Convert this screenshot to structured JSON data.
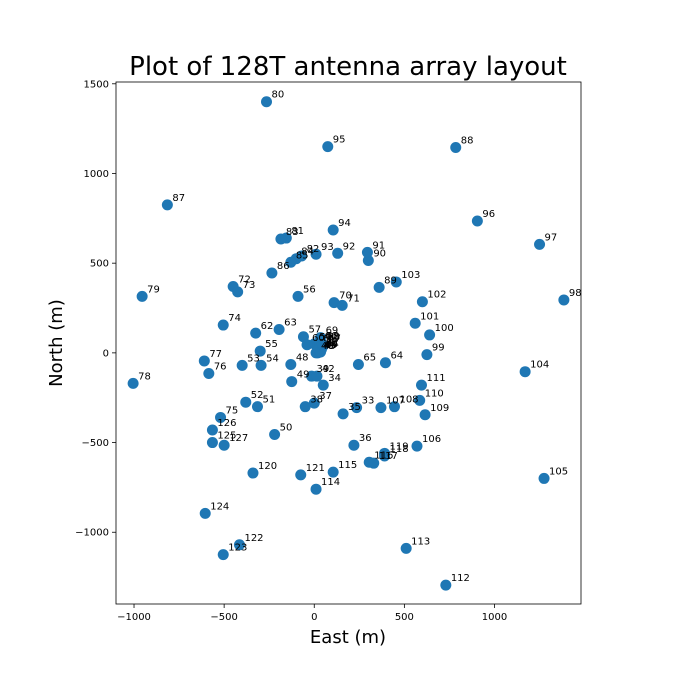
{
  "chart_data": {
    "type": "scatter",
    "title": "Plot of 128T antenna array layout",
    "xlabel": "East (m)",
    "ylabel": "North (m)",
    "xlim": [
      -1100,
      1480
    ],
    "ylim": [
      -1400,
      1510
    ],
    "xticks": [
      -1000,
      -500,
      0,
      500,
      1000
    ],
    "yticks": [
      -1000,
      -500,
      0,
      500,
      1000,
      1500
    ],
    "grid": false,
    "color": "#1f77b4",
    "points": [
      {
        "label": "33",
        "x": 235,
        "y": -305
      },
      {
        "label": "34",
        "x": 50,
        "y": -180
      },
      {
        "label": "35",
        "x": 160,
        "y": -340
      },
      {
        "label": "36",
        "x": 220,
        "y": -515
      },
      {
        "label": "37",
        "x": 0,
        "y": -280
      },
      {
        "label": "38",
        "x": -50,
        "y": -300
      },
      {
        "label": "39",
        "x": -15,
        "y": -130
      },
      {
        "label": "40",
        "x": 10,
        "y": 0
      },
      {
        "label": "41",
        "x": 40,
        "y": 20
      },
      {
        "label": "42",
        "x": 15,
        "y": -130
      },
      {
        "label": "43",
        "x": 20,
        "y": 0
      },
      {
        "label": "44",
        "x": 25,
        "y": 5
      },
      {
        "label": "45",
        "x": 30,
        "y": 5
      },
      {
        "label": "46",
        "x": 35,
        "y": 10
      },
      {
        "label": "47",
        "x": 35,
        "y": 5
      },
      {
        "label": "48",
        "x": -130,
        "y": -65
      },
      {
        "label": "49",
        "x": -125,
        "y": -160
      },
      {
        "label": "50",
        "x": -220,
        "y": -455
      },
      {
        "label": "51",
        "x": -315,
        "y": -300
      },
      {
        "label": "52",
        "x": -380,
        "y": -275
      },
      {
        "label": "53",
        "x": -400,
        "y": -70
      },
      {
        "label": "54",
        "x": -295,
        "y": -70
      },
      {
        "label": "55",
        "x": -300,
        "y": 10
      },
      {
        "label": "56",
        "x": -90,
        "y": 315
      },
      {
        "label": "57",
        "x": -60,
        "y": 90
      },
      {
        "label": "58",
        "x": 40,
        "y": 55
      },
      {
        "label": "59",
        "x": 0,
        "y": 50
      },
      {
        "label": "60",
        "x": -40,
        "y": 45
      },
      {
        "label": "61",
        "x": 20,
        "y": 40
      },
      {
        "label": "62",
        "x": -325,
        "y": 110
      },
      {
        "label": "63",
        "x": -195,
        "y": 130
      },
      {
        "label": "64",
        "x": 395,
        "y": -55
      },
      {
        "label": "65",
        "x": 245,
        "y": -65
      },
      {
        "label": "66",
        "x": 30,
        "y": 55
      },
      {
        "label": "67",
        "x": 50,
        "y": 40
      },
      {
        "label": "68",
        "x": 45,
        "y": 50
      },
      {
        "label": "69",
        "x": 35,
        "y": 85
      },
      {
        "label": "70",
        "x": 110,
        "y": 280
      },
      {
        "label": "71",
        "x": 155,
        "y": 265
      },
      {
        "label": "72",
        "x": -450,
        "y": 370
      },
      {
        "label": "73",
        "x": -425,
        "y": 340
      },
      {
        "label": "74",
        "x": -505,
        "y": 155
      },
      {
        "label": "75",
        "x": -520,
        "y": -360
      },
      {
        "label": "76",
        "x": -585,
        "y": -115
      },
      {
        "label": "77",
        "x": -610,
        "y": -45
      },
      {
        "label": "78",
        "x": -1005,
        "y": -170
      },
      {
        "label": "79",
        "x": -955,
        "y": 315
      },
      {
        "label": "80",
        "x": -265,
        "y": 1400
      },
      {
        "label": "81",
        "x": -155,
        "y": 640
      },
      {
        "label": "82",
        "x": -70,
        "y": 540
      },
      {
        "label": "83",
        "x": -185,
        "y": 635
      },
      {
        "label": "84",
        "x": -100,
        "y": 525
      },
      {
        "label": "85",
        "x": -130,
        "y": 505
      },
      {
        "label": "86",
        "x": -235,
        "y": 445
      },
      {
        "label": "87",
        "x": -815,
        "y": 825
      },
      {
        "label": "88",
        "x": 785,
        "y": 1145
      },
      {
        "label": "89",
        "x": 360,
        "y": 365
      },
      {
        "label": "90",
        "x": 300,
        "y": 515
      },
      {
        "label": "91",
        "x": 295,
        "y": 560
      },
      {
        "label": "92",
        "x": 130,
        "y": 555
      },
      {
        "label": "93",
        "x": 10,
        "y": 550
      },
      {
        "label": "94",
        "x": 105,
        "y": 685
      },
      {
        "label": "95",
        "x": 75,
        "y": 1150
      },
      {
        "label": "96",
        "x": 905,
        "y": 735
      },
      {
        "label": "97",
        "x": 1250,
        "y": 605
      },
      {
        "label": "98",
        "x": 1385,
        "y": 295
      },
      {
        "label": "99",
        "x": 625,
        "y": -10
      },
      {
        "label": "100",
        "x": 640,
        "y": 100
      },
      {
        "label": "101",
        "x": 560,
        "y": 165
      },
      {
        "label": "102",
        "x": 600,
        "y": 285
      },
      {
        "label": "103",
        "x": 455,
        "y": 395
      },
      {
        "label": "104",
        "x": 1170,
        "y": -105
      },
      {
        "label": "105",
        "x": 1275,
        "y": -700
      },
      {
        "label": "106",
        "x": 570,
        "y": -520
      },
      {
        "label": "107",
        "x": 370,
        "y": -305
      },
      {
        "label": "108",
        "x": 445,
        "y": -300
      },
      {
        "label": "109",
        "x": 615,
        "y": -345
      },
      {
        "label": "110",
        "x": 585,
        "y": -265
      },
      {
        "label": "111",
        "x": 595,
        "y": -180
      },
      {
        "label": "112",
        "x": 730,
        "y": -1295
      },
      {
        "label": "113",
        "x": 510,
        "y": -1090
      },
      {
        "label": "114",
        "x": 10,
        "y": -760
      },
      {
        "label": "115",
        "x": 105,
        "y": -665
      },
      {
        "label": "116",
        "x": 305,
        "y": -610
      },
      {
        "label": "117",
        "x": 330,
        "y": -615
      },
      {
        "label": "118",
        "x": 390,
        "y": -575
      },
      {
        "label": "119",
        "x": 390,
        "y": -560
      },
      {
        "label": "120",
        "x": -340,
        "y": -670
      },
      {
        "label": "121",
        "x": -75,
        "y": -680
      },
      {
        "label": "122",
        "x": -415,
        "y": -1070
      },
      {
        "label": "123",
        "x": -505,
        "y": -1125
      },
      {
        "label": "124",
        "x": -605,
        "y": -895
      },
      {
        "label": "125",
        "x": -565,
        "y": -500
      },
      {
        "label": "126",
        "x": -565,
        "y": -430
      },
      {
        "label": "127",
        "x": -500,
        "y": -515
      }
    ]
  }
}
